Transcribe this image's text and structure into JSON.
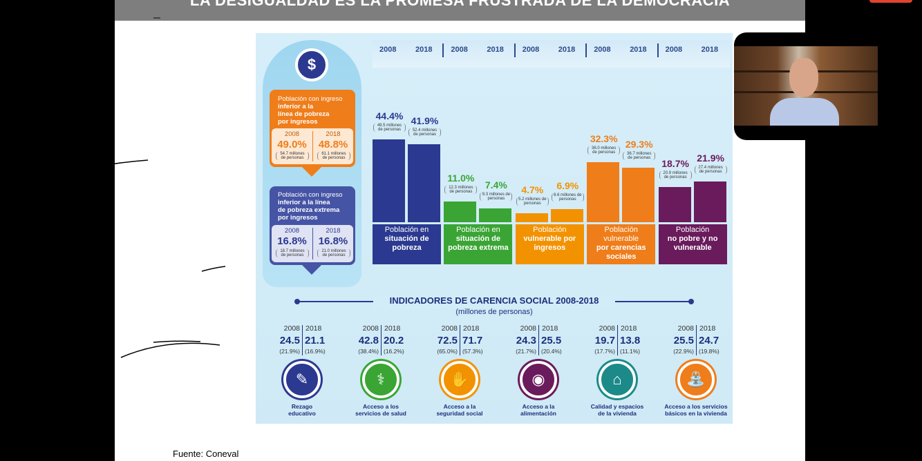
{
  "slide_title": "LA DESIGUALDAD ES LA PROMESA FRUSTRADA DE LA DEMOCRACIA",
  "source": "Fuente: Coneval",
  "left_panel": {
    "poverty_income": {
      "title_line1": "Población con ingreso",
      "title_line2": "inferior a la",
      "title_line3": "línea de pobreza",
      "title_line4": "por ingresos",
      "year1": "2008",
      "year2": "2018",
      "value1": "49.0%",
      "value2": "48.8%",
      "note1": "54.7 millones de personas",
      "note2": "61.1 millones de personas"
    },
    "extreme_income": {
      "title_line1": "Población con ingreso",
      "title_line2": "inferior a la línea",
      "title_line3": "de pobreza extrema",
      "title_line4": "por ingresos",
      "year1": "2008",
      "year2": "2018",
      "value1": "16.8%",
      "value2": "16.8%",
      "note1": "18.7 millones de personas",
      "note2": "21.0 millones de personas"
    }
  },
  "chart_data": {
    "type": "bar",
    "year_headers": [
      "2008",
      "2018",
      "2008",
      "2018",
      "2008",
      "2018",
      "2008",
      "2018",
      "2008",
      "2018"
    ],
    "groups": [
      {
        "label_line1": "Población en",
        "label_line2": "situación de",
        "label_line3": "pobreza",
        "color": "#2b3990",
        "values": [
          {
            "year": "2008",
            "value": 44.4,
            "label": "44.4%",
            "note": "49.5 millones de personas"
          },
          {
            "year": "2018",
            "value": 41.9,
            "label": "41.9%",
            "note": "52.4 millones de personas"
          }
        ]
      },
      {
        "label_line1": "Población en",
        "label_line2": "situación de",
        "label_line3": "pobreza extrema",
        "color": "#3aa535",
        "values": [
          {
            "year": "2008",
            "value": 11.0,
            "label": "11.0%",
            "note": "12.3 millones de personas"
          },
          {
            "year": "2018",
            "value": 7.4,
            "label": "7.4%",
            "note": "9.3 millones de personas"
          }
        ]
      },
      {
        "label_line1": "Población",
        "label_line2": "vulnerable por",
        "label_line3": "ingresos",
        "color": "#f39200",
        "values": [
          {
            "year": "2008",
            "value": 4.7,
            "label": "4.7%",
            "note": "5.2 millones de personas"
          },
          {
            "year": "2018",
            "value": 6.9,
            "label": "6.9%",
            "note": "8.6 millones de personas"
          }
        ]
      },
      {
        "label_line1": "Población vulnerable",
        "label_line2": "por carencias",
        "label_line3": "sociales",
        "color": "#ef7d1a",
        "values": [
          {
            "year": "2008",
            "value": 32.3,
            "label": "32.3%",
            "note": "36.0 millones de personas"
          },
          {
            "year": "2018",
            "value": 29.3,
            "label": "29.3%",
            "note": "36.7 millones de personas"
          }
        ]
      },
      {
        "label_line1": "Población",
        "label_line2": "no pobre y no",
        "label_line3": "vulnerable",
        "color": "#6a1b5c",
        "values": [
          {
            "year": "2008",
            "value": 18.7,
            "label": "18.7%",
            "note": "20.9 millones de personas"
          },
          {
            "year": "2018",
            "value": 21.9,
            "label": "21.9%",
            "note": "27.4 millones de personas"
          }
        ]
      }
    ]
  },
  "indicators": {
    "title": "INDICADORES DE CARENCIA SOCIAL 2008-2018",
    "subtitle": "(millones de personas)",
    "items": [
      {
        "y1": "2008",
        "y2": "2018",
        "v1": "24.5",
        "v2": "21.1",
        "p1": "(21.9%)",
        "p2": "(16.9%)",
        "label1": "Rezago",
        "label2": "educativo",
        "color": "#2b3990",
        "icon": "pencil-icon"
      },
      {
        "y1": "2008",
        "y2": "2018",
        "v1": "42.8",
        "v2": "20.2",
        "p1": "(38.4%)",
        "p2": "(16.2%)",
        "label1": "Acceso a los",
        "label2": "servicios de salud",
        "color": "#3aa535",
        "icon": "doctor-icon"
      },
      {
        "y1": "2008",
        "y2": "2018",
        "v1": "72.5",
        "v2": "71.7",
        "p1": "(65.0%)",
        "p2": "(57.3%)",
        "label1": "Acceso a la",
        "label2": "seguridad social",
        "color": "#f39200",
        "icon": "hand-coins-icon"
      },
      {
        "y1": "2008",
        "y2": "2018",
        "v1": "24.3",
        "v2": "25.5",
        "p1": "(21.7%)",
        "p2": "(20.4%)",
        "label1": "Acceso a la",
        "label2": "alimentación",
        "color": "#6a1b5c",
        "icon": "plate-icon"
      },
      {
        "y1": "2008",
        "y2": "2018",
        "v1": "19.7",
        "v2": "13.8",
        "p1": "(17.7%)",
        "p2": "(11.1%)",
        "label1": "Calidad y espacios",
        "label2": "de la vivienda",
        "color": "#1d8a8a",
        "icon": "house-hands-icon"
      },
      {
        "y1": "2008",
        "y2": "2018",
        "v1": "25.5",
        "v2": "24.7",
        "p1": "(22.9%)",
        "p2": "(19.8%)",
        "label1": "Acceso a los servicios",
        "label2": "básicos en la vivienda",
        "color": "#ef7d1a",
        "icon": "faucet-icon"
      }
    ]
  }
}
